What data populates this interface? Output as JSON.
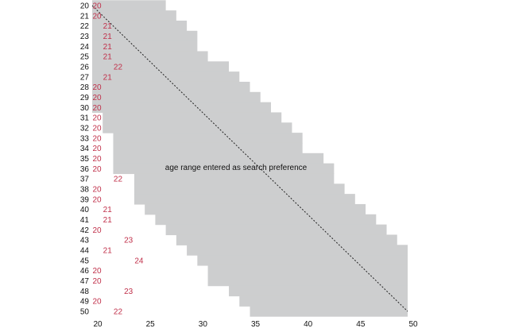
{
  "chart_data": {
    "type": "area",
    "xlim": [
      20,
      50
    ],
    "ylim": [
      20,
      50
    ],
    "x_ticks": [
      20,
      25,
      30,
      35,
      40,
      45,
      50
    ],
    "y_ticks": [
      20,
      21,
      22,
      23,
      24,
      25,
      26,
      27,
      28,
      29,
      30,
      31,
      32,
      33,
      34,
      35,
      36,
      37,
      38,
      39,
      40,
      41,
      42,
      43,
      44,
      45,
      46,
      47,
      48,
      49,
      50
    ],
    "annotation": "age range entered as search preference",
    "series": [
      {
        "role": "range",
        "ages": [
          20,
          21,
          22,
          23,
          24,
          25,
          26,
          27,
          28,
          29,
          30,
          31,
          32,
          33,
          34,
          35,
          36,
          37,
          38,
          39,
          40,
          41,
          42,
          43,
          44,
          45,
          46,
          47,
          48,
          49,
          50
        ],
        "min": [
          20,
          20,
          20,
          20,
          20,
          20,
          20,
          20,
          20,
          20,
          20,
          21,
          21,
          22,
          22,
          22,
          22,
          24,
          24,
          24,
          25,
          26,
          27,
          28,
          29,
          30,
          31,
          31,
          33,
          34,
          35
        ],
        "max": [
          27,
          28,
          29,
          30,
          30,
          31,
          33,
          34,
          35,
          36,
          37,
          38,
          39,
          40,
          40,
          42,
          43,
          43,
          44,
          45,
          46,
          47,
          48,
          49,
          50,
          50,
          50,
          50,
          50,
          50,
          50
        ]
      },
      {
        "role": "value",
        "ages": [
          20,
          21,
          22,
          23,
          24,
          25,
          26,
          27,
          28,
          29,
          30,
          31,
          32,
          33,
          34,
          35,
          36,
          37,
          38,
          39,
          40,
          41,
          42,
          43,
          44,
          45,
          46,
          47,
          48,
          49,
          50
        ],
        "values": [
          20,
          20,
          21,
          21,
          21,
          21,
          22,
          21,
          20,
          20,
          20,
          20,
          20,
          20,
          20,
          20,
          20,
          22,
          20,
          20,
          21,
          21,
          20,
          23,
          21,
          24,
          20,
          20,
          23,
          20,
          22
        ]
      }
    ],
    "reference_line": {
      "from": [
        20,
        20
      ],
      "to": [
        50,
        50
      ],
      "style": "dotted"
    },
    "colors": {
      "band": "#cdcecf",
      "value_label": "#c0304a",
      "diagonal": "#222222"
    },
    "grid": false,
    "legend": "none"
  }
}
